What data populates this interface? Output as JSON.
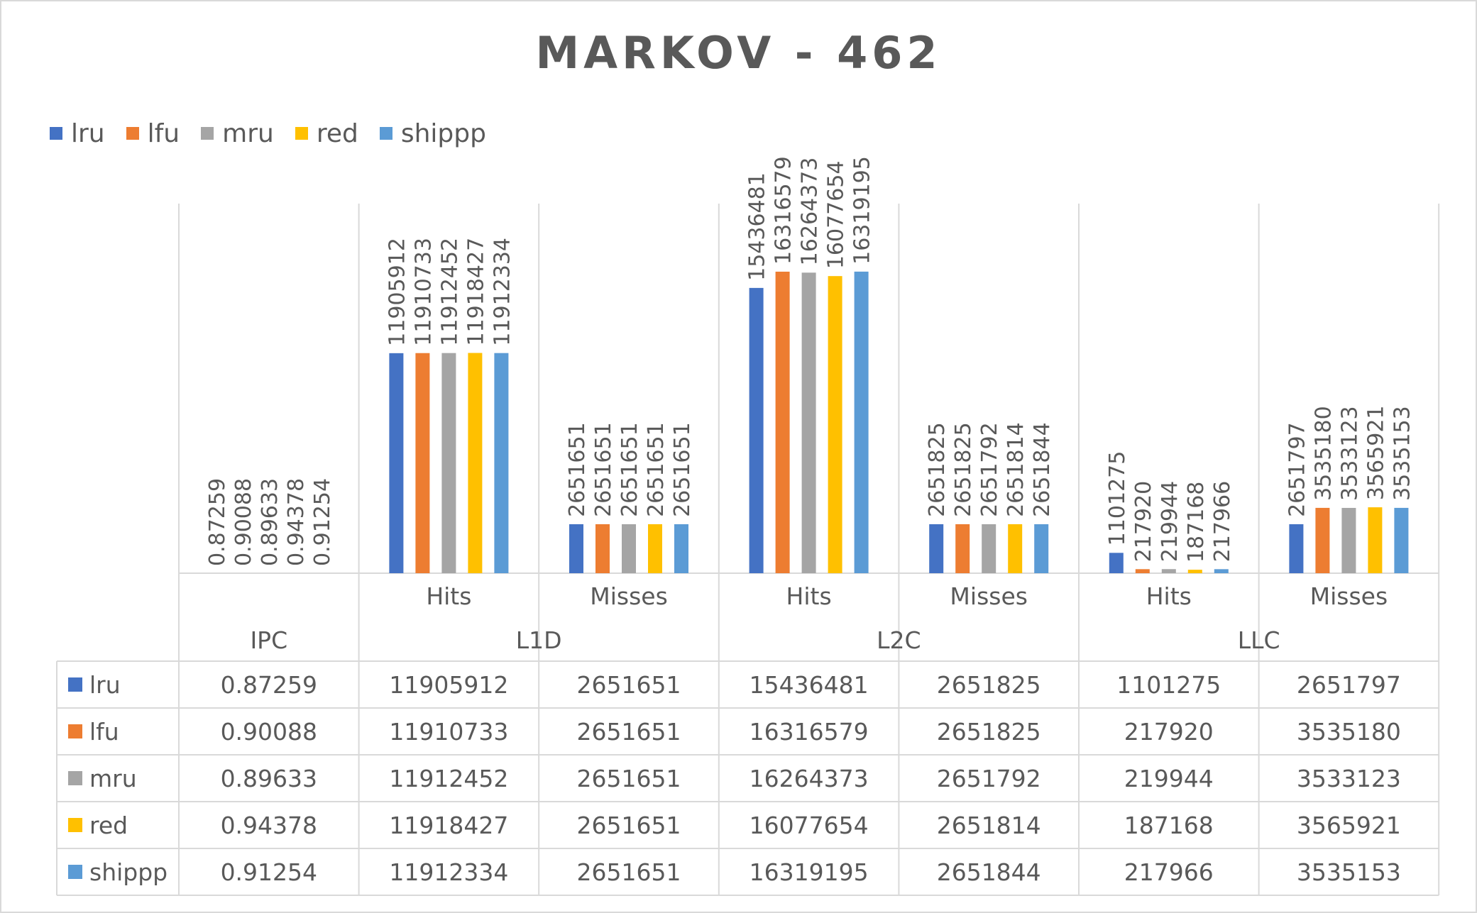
{
  "chart_data": {
    "type": "bar",
    "title": "MARKOV - 462",
    "legend_position": "top-left",
    "grid": false,
    "groups": [
      {
        "label": "IPC",
        "subcategories": [
          ""
        ]
      },
      {
        "label": "L1D",
        "subcategories": [
          "Hits",
          "Misses"
        ]
      },
      {
        "label": "L2C",
        "subcategories": [
          "Hits",
          "Misses"
        ]
      },
      {
        "label": "LLC",
        "subcategories": [
          "Hits",
          "Misses"
        ]
      }
    ],
    "categories": [
      "IPC",
      "L1D Hits",
      "L1D Misses",
      "L2C Hits",
      "L2C Misses",
      "LLC Hits",
      "LLC Misses"
    ],
    "ylim": [
      0,
      20000000
    ],
    "series": [
      {
        "name": "lru",
        "color": "#4472c4",
        "values": [
          0.87259,
          11905912,
          2651651,
          15436481,
          2651825,
          1101275,
          2651797
        ],
        "labels": [
          "0.87259",
          "11905912",
          "2651651",
          "15436481",
          "2651825",
          "1101275",
          "2651797"
        ]
      },
      {
        "name": "lfu",
        "color": "#ed7d31",
        "values": [
          0.90088,
          11910733,
          2651651,
          16316579,
          2651825,
          217920,
          3535180
        ],
        "labels": [
          "0.90088",
          "11910733",
          "2651651",
          "16316579",
          "2651825",
          "217920",
          "3535180"
        ]
      },
      {
        "name": "mru",
        "color": "#a5a5a5",
        "values": [
          0.89633,
          11912452,
          2651651,
          16264373,
          2651792,
          219944,
          3533123
        ],
        "labels": [
          "0.89633",
          "11912452",
          "2651651",
          "16264373",
          "2651792",
          "219944",
          "3533123"
        ]
      },
      {
        "name": "red",
        "color": "#ffc000",
        "values": [
          0.94378,
          11918427,
          2651651,
          16077654,
          2651814,
          187168,
          3565921
        ],
        "labels": [
          "0.94378",
          "11918427",
          "2651651",
          "16077654",
          "2651814",
          "187168",
          "3565921"
        ]
      },
      {
        "name": "shippp",
        "color": "#5b9bd5",
        "values": [
          0.91254,
          11912334,
          2651651,
          16319195,
          2651844,
          217966,
          3535153
        ],
        "labels": [
          "0.91254",
          "11912334",
          "2651651",
          "16319195",
          "2651844",
          "217966",
          "3535153"
        ]
      }
    ]
  },
  "colors": {
    "text": "#595959",
    "gridline": "#d9d9d9"
  }
}
